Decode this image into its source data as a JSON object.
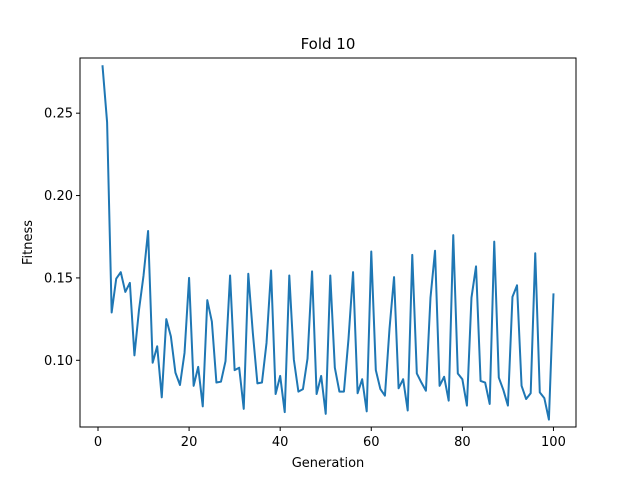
{
  "chart_data": {
    "type": "line",
    "title": "Fold 10",
    "xlabel": "Generation",
    "ylabel": "Fitness",
    "xlim": [
      -3.95,
      104.95
    ],
    "ylim": [
      0.0595,
      0.2835
    ],
    "x_ticks": [
      0,
      20,
      40,
      60,
      80,
      100
    ],
    "x_tick_labels": [
      "0",
      "20",
      "40",
      "60",
      "80",
      "100"
    ],
    "y_ticks": [
      0.1,
      0.15,
      0.2,
      0.25
    ],
    "y_tick_labels": [
      "0.10",
      "0.15",
      "0.20",
      "0.25"
    ],
    "grid": false,
    "line_color": "#1f77b4",
    "series": [
      {
        "x": [
          1,
          2,
          3,
          4,
          5,
          6,
          7,
          8,
          9,
          10,
          11,
          12,
          13,
          14,
          15,
          16,
          17,
          18,
          19,
          20,
          21,
          22,
          23,
          24,
          25,
          26,
          27,
          28,
          29,
          30,
          31,
          32,
          33,
          34,
          35,
          36,
          37,
          38,
          39,
          40,
          41,
          42,
          43,
          44,
          45,
          46,
          47,
          48,
          49,
          50,
          51,
          52,
          53,
          54,
          55,
          56,
          57,
          58,
          59,
          60,
          61,
          62,
          63,
          64,
          65,
          66,
          67,
          68,
          69,
          70,
          71,
          72,
          73,
          74,
          75,
          76,
          77,
          78,
          79,
          80,
          81,
          82,
          83,
          84,
          85,
          86,
          87,
          88,
          89,
          90,
          91,
          92,
          93,
          94,
          95,
          96,
          97,
          98,
          99,
          100
        ],
        "values": [
          0.2785,
          0.2445,
          0.129,
          0.1495,
          0.1535,
          0.1415,
          0.147,
          0.103,
          0.1305,
          0.1515,
          0.1785,
          0.0985,
          0.1085,
          0.0775,
          0.125,
          0.1145,
          0.0925,
          0.085,
          0.1045,
          0.15,
          0.0845,
          0.096,
          0.072,
          0.1365,
          0.1235,
          0.0865,
          0.087,
          0.0995,
          0.1515,
          0.094,
          0.0955,
          0.0705,
          0.1525,
          0.1165,
          0.086,
          0.0865,
          0.1105,
          0.1545,
          0.0795,
          0.0905,
          0.0685,
          0.1515,
          0.1005,
          0.081,
          0.0825,
          0.101,
          0.154,
          0.0795,
          0.0905,
          0.0675,
          0.1515,
          0.0955,
          0.081,
          0.081,
          0.113,
          0.1535,
          0.08,
          0.0885,
          0.069,
          0.166,
          0.094,
          0.0825,
          0.0785,
          0.119,
          0.1505,
          0.083,
          0.0885,
          0.0695,
          0.164,
          0.092,
          0.0865,
          0.0815,
          0.138,
          0.1665,
          0.0845,
          0.09,
          0.0755,
          0.176,
          0.092,
          0.0885,
          0.0725,
          0.138,
          0.157,
          0.0875,
          0.0865,
          0.0735,
          0.172,
          0.0895,
          0.082,
          0.0725,
          0.1385,
          0.1455,
          0.0845,
          0.0765,
          0.08,
          0.165,
          0.0805,
          0.077,
          0.064,
          0.14
        ]
      }
    ]
  }
}
